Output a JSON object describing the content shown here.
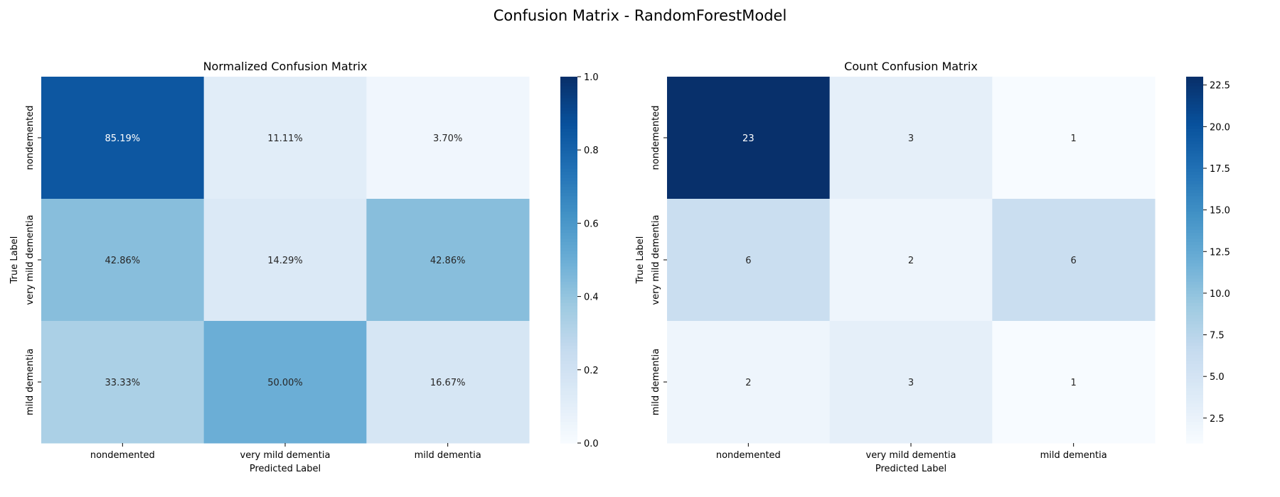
{
  "chart_data": {
    "suptitle": "Confusion Matrix - RandomForestModel",
    "charts": [
      {
        "type": "heatmap",
        "title": "Normalized Confusion Matrix",
        "xlabel": "Predicted Label",
        "ylabel": "True Label",
        "x_categories": [
          "nondemented",
          "very mild dementia",
          "mild dementia"
        ],
        "y_categories": [
          "nondemented",
          "very mild dementia",
          "mild dementia"
        ],
        "values": [
          [
            0.8519,
            0.1111,
            0.037
          ],
          [
            0.4286,
            0.1429,
            0.4286
          ],
          [
            0.3333,
            0.5,
            0.1667
          ]
        ],
        "annotations": [
          [
            "85.19%",
            "11.11%",
            "3.70%"
          ],
          [
            "42.86%",
            "14.29%",
            "42.86%"
          ],
          [
            "33.33%",
            "50.00%",
            "16.67%"
          ]
        ],
        "vmin": 0,
        "vmax": 1,
        "colorbar_ticks": [
          0.0,
          0.2,
          0.4,
          0.6,
          0.8,
          1.0
        ],
        "colorbar_tick_labels": [
          "0.0",
          "0.2",
          "0.4",
          "0.6",
          "0.8",
          "1.0"
        ],
        "colormap": "Blues"
      },
      {
        "type": "heatmap",
        "title": "Count Confusion Matrix",
        "xlabel": "Predicted Label",
        "ylabel": "True Label",
        "x_categories": [
          "nondemented",
          "very mild dementia",
          "mild dementia"
        ],
        "y_categories": [
          "nondemented",
          "very mild dementia",
          "mild dementia"
        ],
        "values": [
          [
            23,
            3,
            1
          ],
          [
            6,
            2,
            6
          ],
          [
            2,
            3,
            1
          ]
        ],
        "annotations": [
          [
            "23",
            "3",
            "1"
          ],
          [
            "6",
            "2",
            "6"
          ],
          [
            "2",
            "3",
            "1"
          ]
        ],
        "vmin": 1,
        "vmax": 23,
        "colorbar_ticks": [
          2.5,
          5.0,
          7.5,
          10.0,
          12.5,
          15.0,
          17.5,
          20.0,
          22.5
        ],
        "colorbar_tick_labels": [
          "2.5",
          "5.0",
          "7.5",
          "10.0",
          "12.5",
          "15.0",
          "17.5",
          "20.0",
          "22.5"
        ],
        "colormap": "Blues"
      }
    ]
  }
}
